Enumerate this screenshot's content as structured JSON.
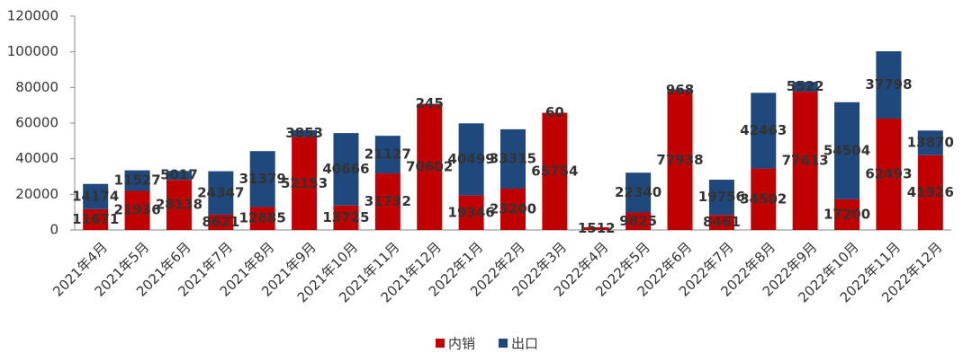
{
  "chart_data": {
    "type": "stacked_bar",
    "categories": [
      "2021年4月",
      "2021年5月",
      "2021年6月",
      "2021年7月",
      "2021年8月",
      "2021年9月",
      "2021年10月",
      "2021年11月",
      "2021年12月",
      "2022年1月",
      "2022年2月",
      "2022年3月",
      "2022年4月",
      "2022年5月",
      "2022年6月",
      "2022年7月",
      "2022年8月",
      "2022年9月",
      "2022年10月",
      "2022年11月",
      "2022年12月"
    ],
    "series": [
      {
        "name": "内销",
        "color": "#c00000",
        "label_color": "#00b050",
        "values": [
          11671,
          21936,
          28138,
          8621,
          12885,
          52153,
          13725,
          31732,
          70602,
          19346,
          23200,
          65754,
          1512,
          9825,
          77938,
          8461,
          34502,
          77613,
          17200,
          62493,
          41926
        ]
      },
      {
        "name": "出口",
        "color": "#1f497d",
        "label_color": "#ffc000",
        "values": [
          14174,
          11527,
          5017,
          24347,
          31379,
          3853,
          40666,
          21127,
          245,
          40499,
          33315,
          60,
          null,
          22340,
          968,
          19756,
          42463,
          5522,
          54504,
          37798,
          13870
        ]
      }
    ],
    "ylim": [
      0,
      120000
    ],
    "yticks": [
      0,
      20000,
      40000,
      60000,
      80000,
      100000,
      120000
    ],
    "legend": "bottom"
  }
}
